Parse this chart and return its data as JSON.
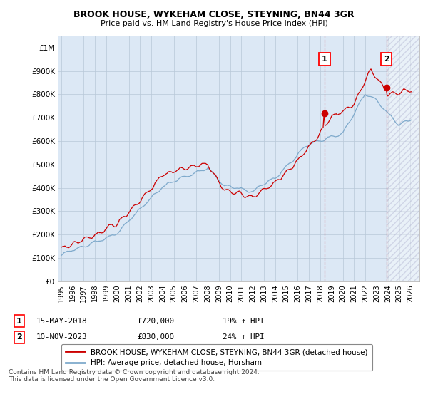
{
  "title": "BROOK HOUSE, WYKEHAM CLOSE, STEYNING, BN44 3GR",
  "subtitle": "Price paid vs. HM Land Registry's House Price Index (HPI)",
  "ylabel_ticks": [
    "£0",
    "£100K",
    "£200K",
    "£300K",
    "£400K",
    "£500K",
    "£600K",
    "£700K",
    "£800K",
    "£900K",
    "£1M"
  ],
  "ytick_values": [
    0,
    100000,
    200000,
    300000,
    400000,
    500000,
    600000,
    700000,
    800000,
    900000,
    1000000
  ],
  "ylim": [
    0,
    1050000
  ],
  "xlim_start": 1994.7,
  "xlim_end": 2026.8,
  "xticks": [
    1995,
    1996,
    1997,
    1998,
    1999,
    2000,
    2001,
    2002,
    2003,
    2004,
    2005,
    2006,
    2007,
    2008,
    2009,
    2010,
    2011,
    2012,
    2013,
    2014,
    2015,
    2016,
    2017,
    2018,
    2019,
    2020,
    2021,
    2022,
    2023,
    2024,
    2025,
    2026
  ],
  "red_line_color": "#cc0000",
  "blue_line_color": "#7faacc",
  "marker1_date": 2018.37,
  "marker1_value": 720000,
  "marker1_label": "1",
  "marker2_date": 2023.87,
  "marker2_value": 830000,
  "marker2_label": "2",
  "vline1_x": 2018.37,
  "vline2_x": 2023.87,
  "legend_red_label": "BROOK HOUSE, WYKEHAM CLOSE, STEYNING, BN44 3GR (detached house)",
  "legend_blue_label": "HPI: Average price, detached house, Horsham",
  "annotation1": [
    "1",
    "15-MAY-2018",
    "£720,000",
    "19% ↑ HPI"
  ],
  "annotation2": [
    "2",
    "10-NOV-2023",
    "£830,000",
    "24% ↑ HPI"
  ],
  "footer": "Contains HM Land Registry data © Crown copyright and database right 2024.\nThis data is licensed under the Open Government Licence v3.0.",
  "background_color": "#ffffff",
  "plot_bg_color": "#dce8f5",
  "grid_color": "#b8c8d8"
}
